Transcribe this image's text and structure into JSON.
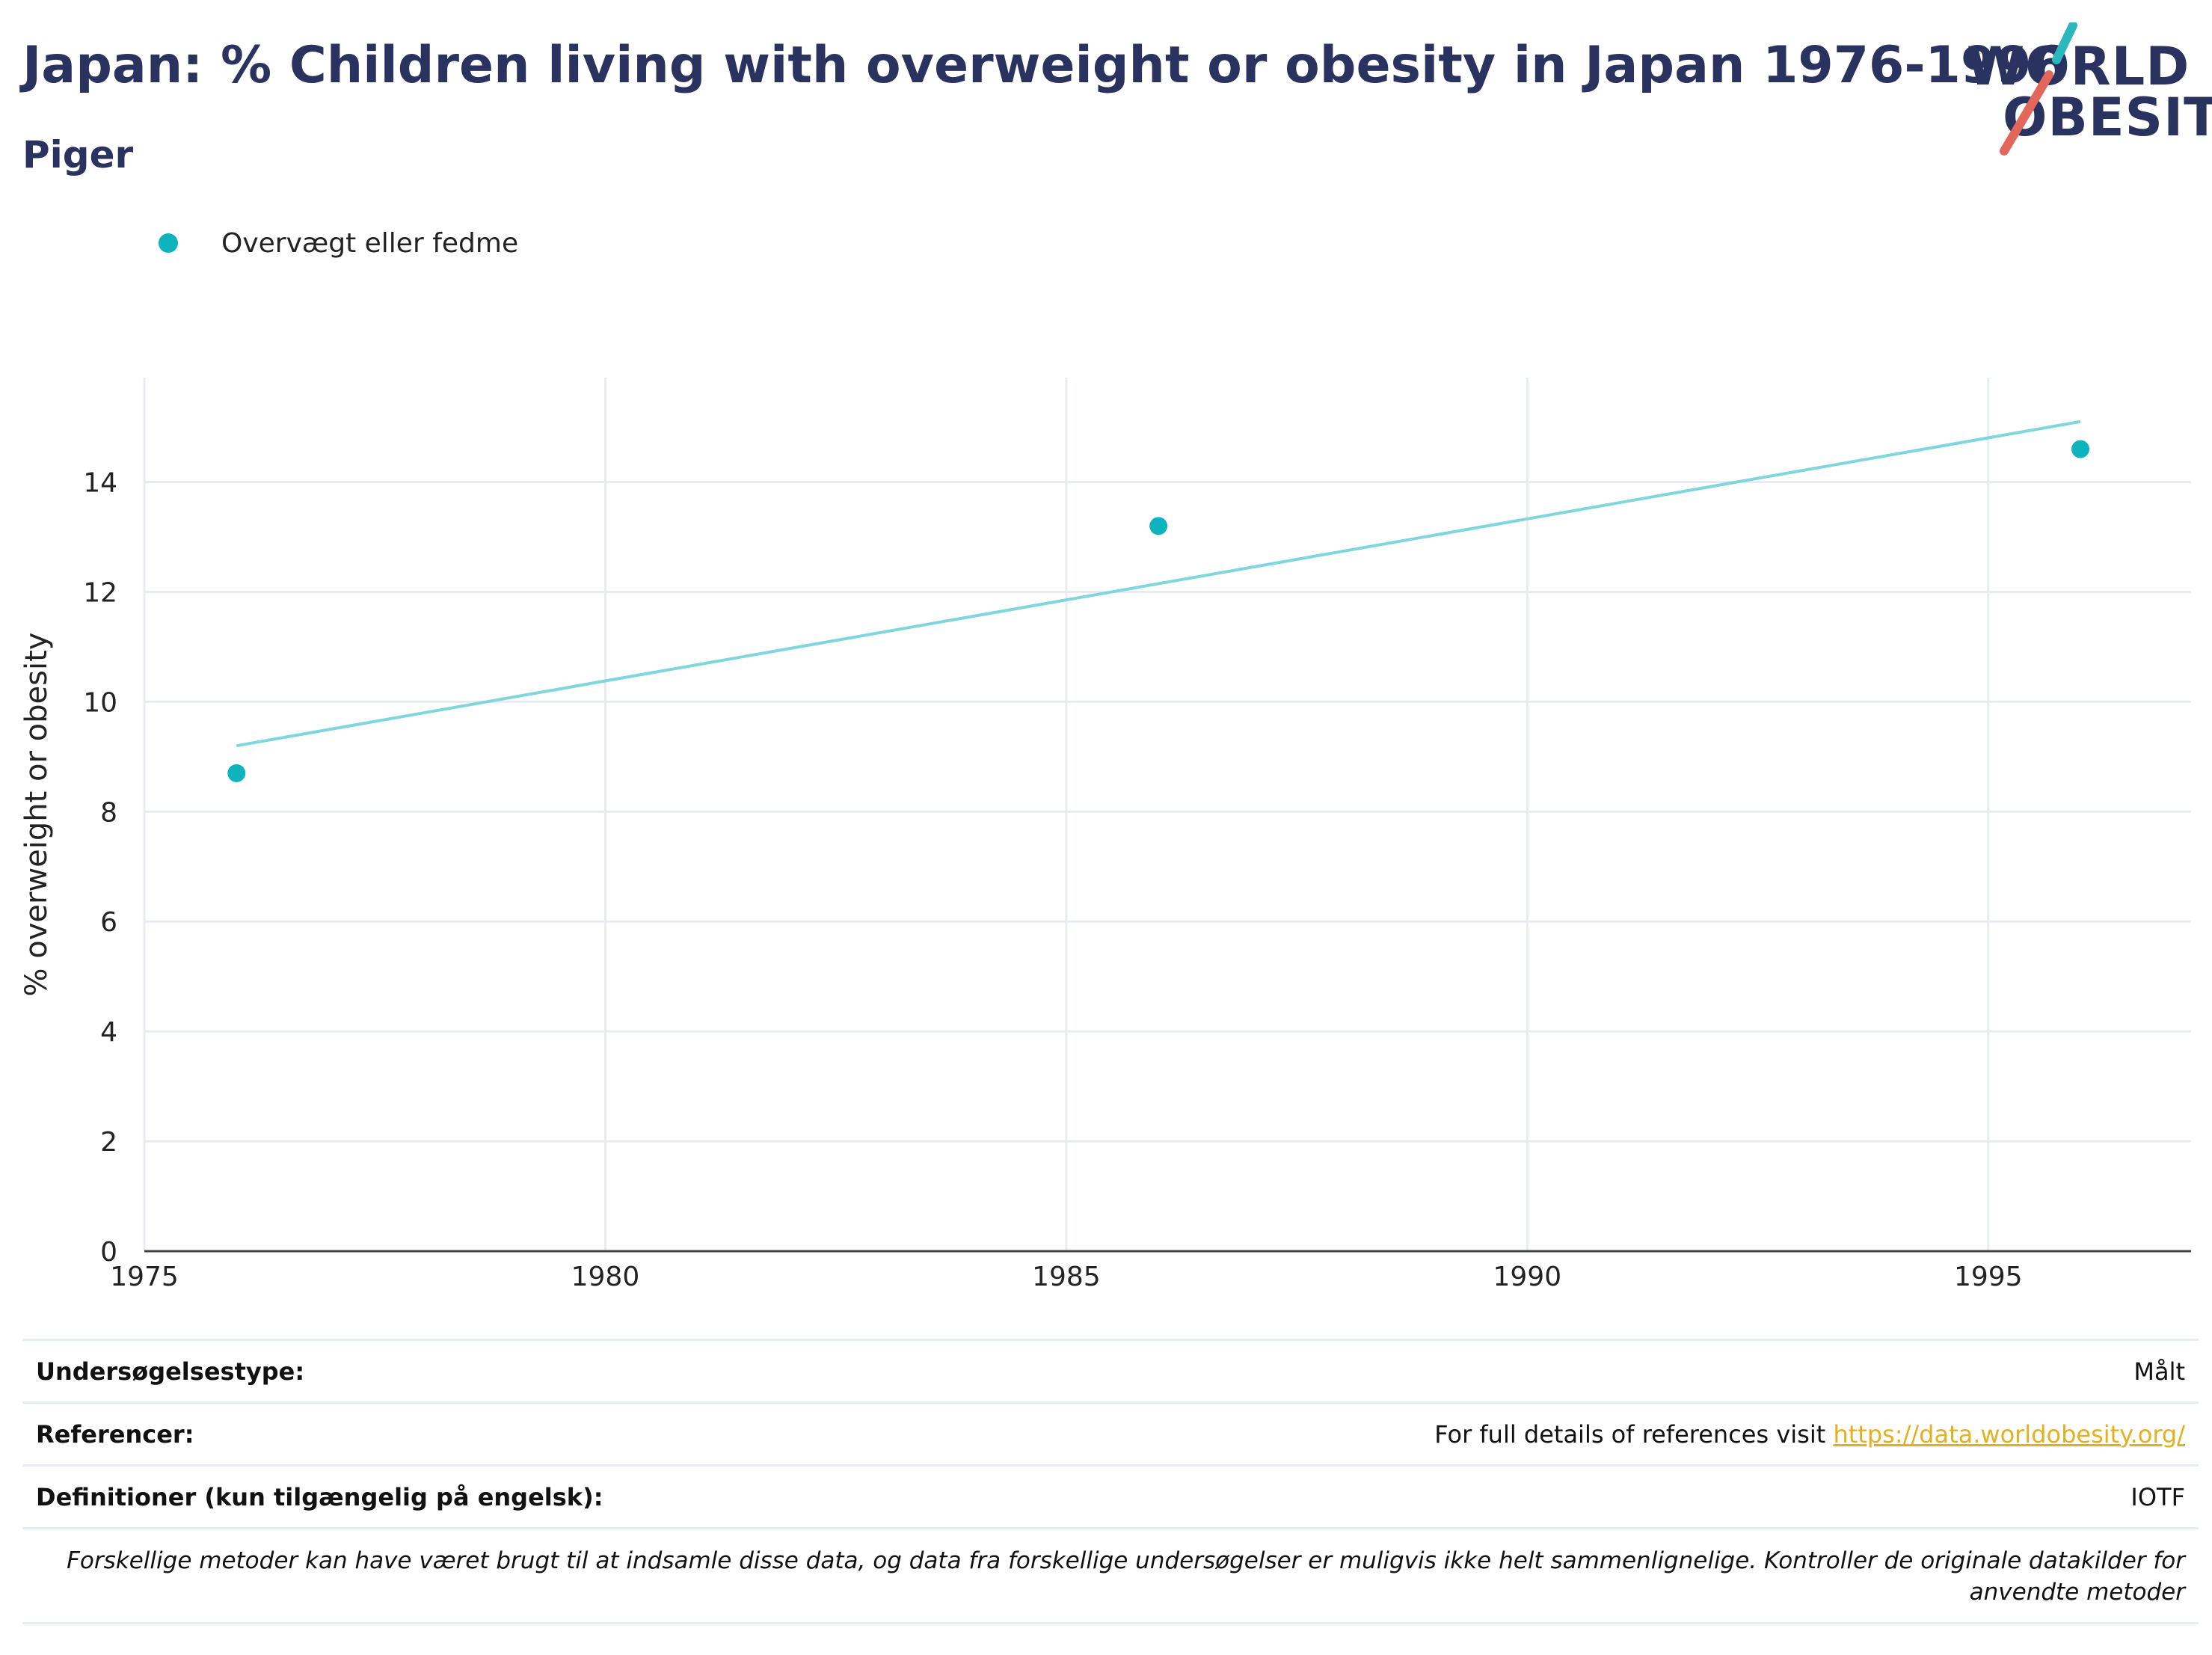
{
  "header": {
    "title": "Japan: % Children living with overweight or obesity in Japan 1976-1996",
    "subtitle": "Piger"
  },
  "logo": {
    "line1": "WORLD",
    "line2": "OBESITY"
  },
  "colors": {
    "marker": "#0fb3bd",
    "trend": "#7fd6dc",
    "title": "#2a3260",
    "link": "#e5b020",
    "logo_teal": "#2ab7bd",
    "logo_red": "#e2675a"
  },
  "chart_data": {
    "type": "scatter",
    "xlabel": "",
    "ylabel": "% overweight or obesity",
    "xlim": [
      1975,
      1997.2
    ],
    "ylim": [
      0,
      15.9
    ],
    "xticks": [
      1975,
      1980,
      1985,
      1990,
      1995
    ],
    "yticks": [
      0,
      2,
      4,
      6,
      8,
      10,
      12,
      14
    ],
    "grid": true,
    "legend_position": "top-left",
    "series": [
      {
        "name": "Overvægt eller fedme",
        "x": [
          1976,
          1986,
          1996
        ],
        "y": [
          8.7,
          13.2,
          14.6
        ]
      }
    ],
    "trendline": {
      "x": [
        1976,
        1996
      ],
      "y": [
        9.2,
        15.1
      ]
    }
  },
  "info": {
    "survey_type_label": "Undersøgelsestype:",
    "survey_type_value": "Målt",
    "references_label": "Referencer:",
    "references_text": "For full details of references visit ",
    "references_link": "https://data.worldobesity.org/",
    "definitions_label": "Definitioner (kun tilgængelig på engelsk):",
    "definitions_value": "IOTF",
    "note_line1": "Forskellige metoder kan have været brugt til at indsamle disse data, og data fra forskellige undersøgelser er muligvis ikke helt sammenlignelige. Kontroller de originale datakilder for",
    "note_line2": "anvendte metoder"
  }
}
